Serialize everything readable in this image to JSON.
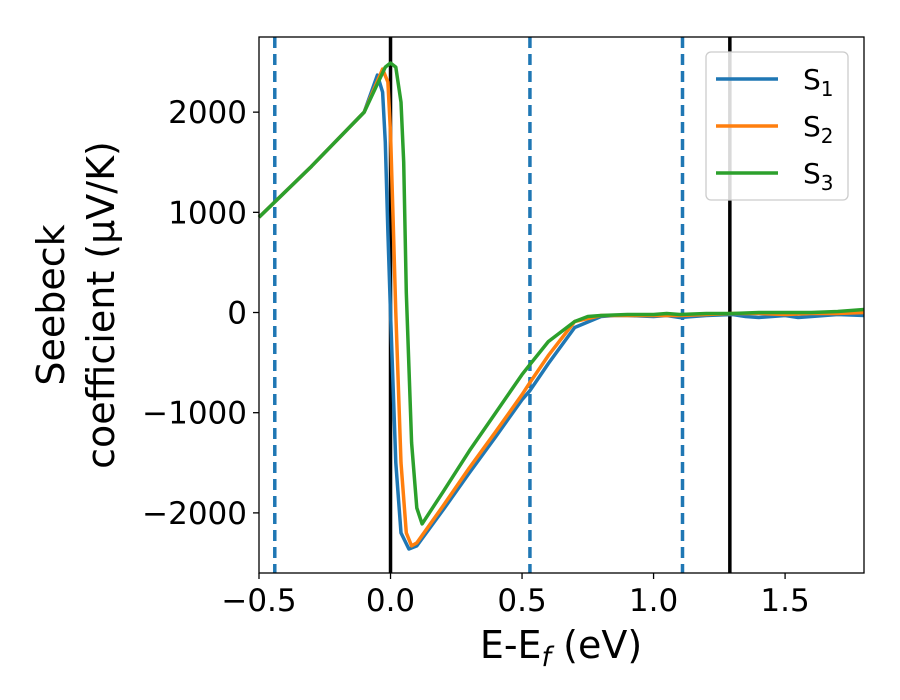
{
  "chart_data": {
    "type": "line",
    "xlabel": "E-E_f (eV)",
    "xlabel_parts": {
      "main": "E-E",
      "sub": "f",
      "suffix": " (eV)"
    },
    "ylabel_lines": [
      "Seebeck",
      "coefficient  (μV/K)"
    ],
    "xlim": [
      -0.5,
      1.8
    ],
    "ylim": [
      -2600,
      2750
    ],
    "xticks": [
      -0.5,
      0.0,
      0.5,
      1.0,
      1.5
    ],
    "xtick_labels": [
      "−0.5",
      "0.0",
      "0.5",
      "1.0",
      "1.5"
    ],
    "yticks": [
      -2000,
      -1000,
      0,
      1000,
      2000
    ],
    "ytick_labels": [
      "−2000",
      "−1000",
      "0",
      "1000",
      "2000"
    ],
    "legend_position": "top-right",
    "grid": false,
    "vlines_solid": [
      0.0,
      1.29
    ],
    "vlines_dashed": [
      -0.44,
      0.53,
      1.11
    ],
    "series": [
      {
        "name": "S",
        "subscript": "1",
        "color": "#1f77b4",
        "x": [
          -0.5,
          -0.3,
          -0.1,
          -0.05,
          -0.03,
          -0.02,
          -0.01,
          0.0,
          0.02,
          0.04,
          0.07,
          0.1,
          0.2,
          0.3,
          0.4,
          0.5,
          0.53,
          0.6,
          0.7,
          0.8,
          0.85,
          0.9,
          0.95,
          1.0,
          1.05,
          1.1,
          1.15,
          1.2,
          1.3,
          1.35,
          1.4,
          1.5,
          1.55,
          1.6,
          1.7,
          1.8
        ],
        "y": [
          950,
          1460,
          2000,
          2370,
          2200,
          1700,
          800,
          0,
          -1500,
          -2200,
          -2360,
          -2330,
          -1970,
          -1600,
          -1240,
          -870,
          -780,
          -510,
          -150,
          -40,
          -30,
          -30,
          -35,
          -40,
          -30,
          -50,
          -40,
          -30,
          -20,
          -40,
          -50,
          -30,
          -50,
          -40,
          -20,
          -30
        ]
      },
      {
        "name": "S",
        "subscript": "2",
        "color": "#ff7f0e",
        "x": [
          -0.5,
          -0.3,
          -0.1,
          -0.03,
          -0.01,
          0.0,
          0.01,
          0.02,
          0.04,
          0.06,
          0.08,
          0.1,
          0.2,
          0.3,
          0.4,
          0.5,
          0.53,
          0.6,
          0.7,
          0.8,
          0.9,
          1.0,
          1.1,
          1.2,
          1.3,
          1.4,
          1.5,
          1.6,
          1.7,
          1.8
        ],
        "y": [
          950,
          1460,
          2000,
          2430,
          2300,
          1800,
          900,
          0,
          -1500,
          -2200,
          -2330,
          -2300,
          -1930,
          -1550,
          -1190,
          -820,
          -700,
          -430,
          -90,
          -30,
          -30,
          -30,
          -30,
          -20,
          -10,
          -10,
          -20,
          -10,
          -10,
          0
        ]
      },
      {
        "name": "S",
        "subscript": "3",
        "color": "#2ca02c",
        "x": [
          -0.5,
          -0.3,
          -0.1,
          -0.02,
          0.0,
          0.02,
          0.04,
          0.05,
          0.06,
          0.08,
          0.1,
          0.12,
          0.2,
          0.3,
          0.4,
          0.5,
          0.53,
          0.6,
          0.7,
          0.75,
          0.8,
          0.9,
          1.0,
          1.05,
          1.1,
          1.2,
          1.3,
          1.4,
          1.5,
          1.6,
          1.7,
          1.8
        ],
        "y": [
          950,
          1460,
          2000,
          2450,
          2490,
          2450,
          2100,
          1500,
          200,
          -1300,
          -1950,
          -2110,
          -1790,
          -1380,
          -1000,
          -620,
          -520,
          -290,
          -90,
          -40,
          -30,
          -20,
          -20,
          -10,
          -20,
          -10,
          -10,
          0,
          0,
          0,
          10,
          30
        ]
      }
    ]
  }
}
